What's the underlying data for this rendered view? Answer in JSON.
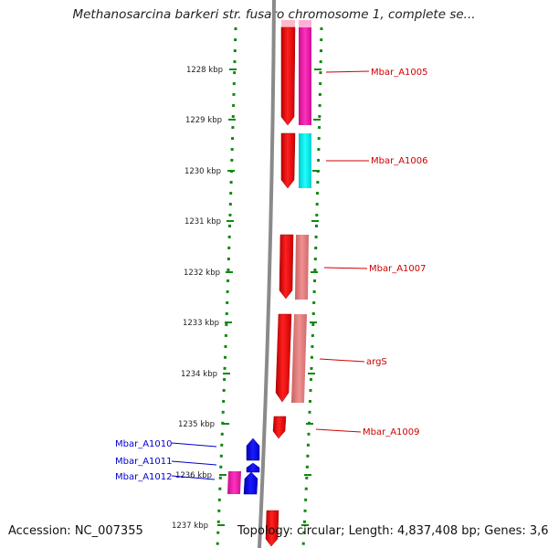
{
  "header": {
    "title": "Methanosarcina barkeri str. fusaro chromosome 1, complete se..."
  },
  "footer": {
    "accession": "Accession: NC_007355",
    "summary": "Topology: circular; Length: 4,837,408 bp; Genes: 3,679"
  },
  "ticks": [
    {
      "label": "1228 kbp"
    },
    {
      "label": "1229 kbp"
    },
    {
      "label": "1230 kbp"
    },
    {
      "label": "1231 kbp"
    },
    {
      "label": "1232 kbp"
    },
    {
      "label": "1233 kbp"
    },
    {
      "label": "1234 kbp"
    },
    {
      "label": "1235 kbp"
    },
    {
      "label": "1236 kbp"
    },
    {
      "label": "1237 kbp"
    }
  ],
  "gene_labels": [
    {
      "text": "Mbar_A1005",
      "color": "#cc0000"
    },
    {
      "text": "Mbar_A1006",
      "color": "#cc0000"
    },
    {
      "text": "Mbar_A1007",
      "color": "#cc0000"
    },
    {
      "text": "argS",
      "color": "#cc0000"
    },
    {
      "text": "Mbar_A1009",
      "color": "#cc0000"
    },
    {
      "text": "Mbar_A1010",
      "color": "#0000cc"
    },
    {
      "text": "Mbar_A1011",
      "color": "#0000cc"
    },
    {
      "text": "Mbar_A1012",
      "color": "#0000cc"
    }
  ],
  "colors": {
    "forward_cds": "#ff0000",
    "reverse_cds": "#0000ff",
    "backbone": "#808080",
    "tick_marks": "#118811",
    "feature_magenta": "#ee22aa",
    "feature_cyan": "#00e8e8",
    "feature_salmon": "#e07878",
    "feature_pink": "#ff55aa"
  }
}
